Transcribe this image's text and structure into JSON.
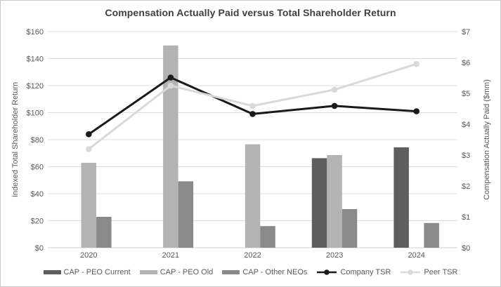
{
  "title": "Compensation Actually Paid versus Total Shareholder Return",
  "chart_data": {
    "type": "bar+line combo",
    "categories": [
      "2020",
      "2021",
      "2022",
      "2023",
      "2024"
    ],
    "series": [
      {
        "name": "CAP - PEO Current",
        "type": "bar",
        "axis": "right",
        "color": "#5e5e5e",
        "values": [
          0,
          0,
          0,
          2.9,
          3.25
        ]
      },
      {
        "name": "CAP - PEO Old",
        "type": "bar",
        "axis": "right",
        "color": "#b3b3b3",
        "values": [
          2.75,
          6.55,
          3.35,
          3.0,
          0
        ]
      },
      {
        "name": "CAP - Other NEOs",
        "type": "bar",
        "axis": "right",
        "color": "#8a8a8a",
        "values": [
          1.0,
          2.15,
          0.7,
          1.25,
          0.8
        ]
      },
      {
        "name": "Company TSR",
        "type": "line",
        "axis": "left",
        "color": "#1a1a1a",
        "values": [
          84,
          126,
          99,
          105,
          101
        ]
      },
      {
        "name": "Peer TSR",
        "type": "line",
        "axis": "left",
        "color": "#d9d9d9",
        "values": [
          73,
          120,
          105,
          117,
          136
        ]
      }
    ],
    "left_axis": {
      "title": "Indexed Total Shareholder Return",
      "min": 0,
      "max": 160,
      "tick_step": 20,
      "tick_labels": [
        "$0",
        "$20",
        "$40",
        "$60",
        "$80",
        "$100",
        "$120",
        "$140",
        "$160"
      ]
    },
    "right_axis": {
      "title": "Compensation  Actually Paid ($mm)",
      "min": 0,
      "max": 7,
      "tick_step": 1,
      "tick_labels": [
        "$0",
        "$1",
        "$2",
        "$3",
        "$4",
        "$5",
        "$6",
        "$7"
      ]
    },
    "grid": "horizontal only",
    "legend_position": "bottom"
  },
  "styles": {
    "grid_color": "#dcdcdc",
    "axis_line_color": "#d0d0d0",
    "axis_text_color": "#595959",
    "title_color": "#3f3f3f",
    "background": "#ffffff",
    "border_color": "#c9c9c9"
  }
}
